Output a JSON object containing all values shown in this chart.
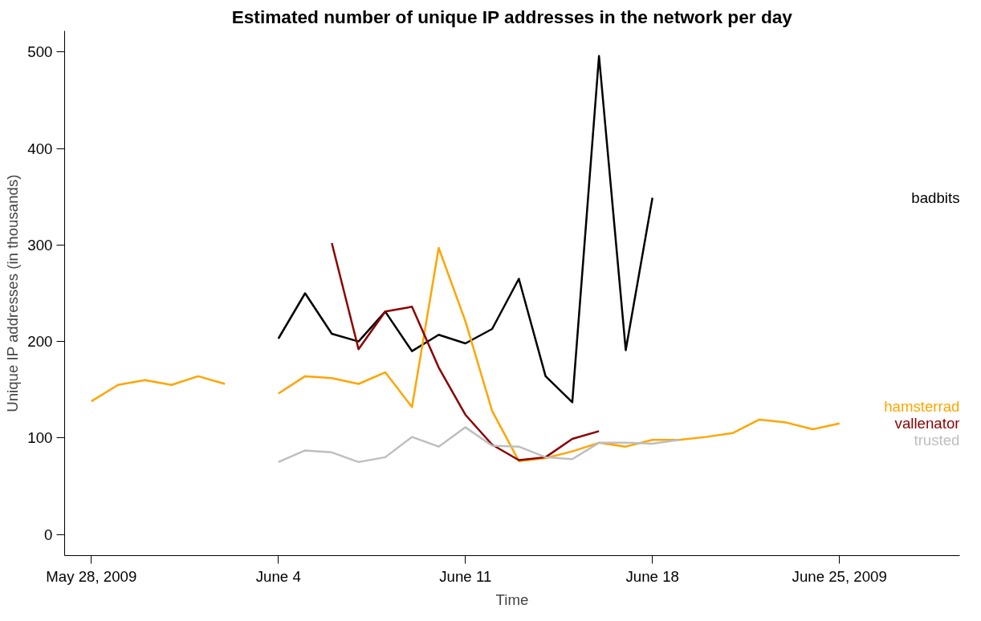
{
  "chart_data": {
    "type": "line",
    "title": "Estimated number of unique IP addresses in the network per day",
    "xlabel": "Time",
    "ylabel": "Unique IP addresses (in thousands)",
    "xlim": [
      "2009-05-27",
      "2009-06-29T12:00"
    ],
    "ylim": [
      -22,
      522
    ],
    "xticks": [
      {
        "value": "2009-05-28",
        "label": "May 28, 2009"
      },
      {
        "value": "2009-06-04",
        "label": "June 4"
      },
      {
        "value": "2009-06-11",
        "label": "June 11"
      },
      {
        "value": "2009-06-18",
        "label": "June 18"
      },
      {
        "value": "2009-06-25",
        "label": "June 25, 2009"
      }
    ],
    "yticks": [
      0,
      100,
      200,
      300,
      400,
      500
    ],
    "grid": false,
    "line_style": "solid",
    "marker": "none",
    "series": [
      {
        "name": "badbits",
        "color": "#000000",
        "x": [
          "2009-06-04",
          "2009-06-05",
          "2009-06-06",
          "2009-06-07",
          "2009-06-08",
          "2009-06-09",
          "2009-06-10",
          "2009-06-11",
          "2009-06-12",
          "2009-06-13",
          "2009-06-14",
          "2009-06-15",
          "2009-06-16",
          "2009-06-17",
          "2009-06-18"
        ],
        "values": [
          203,
          250,
          208,
          200,
          231,
          190,
          207,
          198,
          213,
          265,
          164,
          137,
          496,
          191,
          349
        ]
      },
      {
        "name": "hamsterrad",
        "color": "#ffa500",
        "x": [
          "2009-05-28",
          "2009-05-29",
          "2009-05-30",
          "2009-05-31",
          "2009-06-01",
          "2009-06-02",
          "2009-06-03",
          "2009-06-04",
          "2009-06-05",
          "2009-06-06",
          "2009-06-07",
          "2009-06-08",
          "2009-06-09",
          "2009-06-10",
          "2009-06-11",
          "2009-06-12",
          "2009-06-13",
          "2009-06-14",
          "2009-06-15",
          "2009-06-16",
          "2009-06-17",
          "2009-06-18",
          "2009-06-19",
          "2009-06-20",
          "2009-06-21",
          "2009-06-22",
          "2009-06-23",
          "2009-06-24",
          "2009-06-25"
        ],
        "values": [
          138,
          155,
          160,
          155,
          164,
          156,
          null,
          146,
          164,
          162,
          156,
          168,
          132,
          297,
          221,
          128,
          76,
          79,
          86,
          95,
          91,
          98,
          98,
          101,
          105,
          119,
          116,
          109,
          115
        ]
      },
      {
        "name": "vallenator",
        "color": "#8b0000",
        "x": [
          "2009-06-06",
          "2009-06-07",
          "2009-06-08",
          "2009-06-09",
          "2009-06-10",
          "2009-06-11",
          "2009-06-12",
          "2009-06-13",
          "2009-06-14",
          "2009-06-15",
          "2009-06-16"
        ],
        "values": [
          302,
          192,
          231,
          236,
          173,
          124,
          93,
          77,
          80,
          99,
          107
        ]
      },
      {
        "name": "trusted",
        "color": "#bebebe",
        "x": [
          "2009-06-04",
          "2009-06-05",
          "2009-06-06",
          "2009-06-07",
          "2009-06-08",
          "2009-06-09",
          "2009-06-10",
          "2009-06-11",
          "2009-06-12",
          "2009-06-13",
          "2009-06-14",
          "2009-06-15",
          "2009-06-16",
          "2009-06-17",
          "2009-06-18",
          "2009-06-19"
        ],
        "values": [
          75,
          87,
          85,
          75,
          80,
          101,
          91,
          111,
          92,
          91,
          80,
          78,
          95,
          95,
          94,
          98
        ]
      }
    ]
  }
}
